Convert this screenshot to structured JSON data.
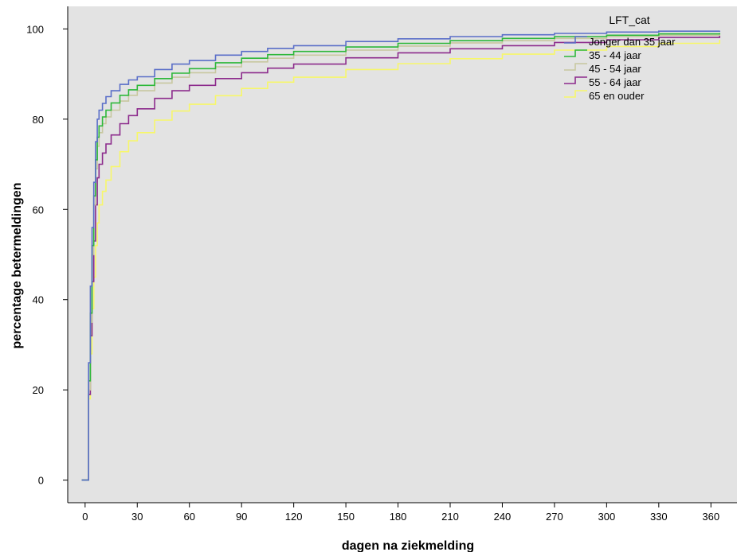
{
  "chart_data": {
    "type": "line",
    "step": true,
    "xlabel": "dagen na ziekmelding",
    "ylabel": "percentage betermeldingen",
    "xlim": [
      -10,
      375
    ],
    "ylim": [
      -5,
      105
    ],
    "xticks": [
      0,
      30,
      60,
      90,
      120,
      150,
      180,
      210,
      240,
      270,
      300,
      330,
      360
    ],
    "yticks": [
      0,
      20,
      40,
      60,
      80,
      100
    ],
    "background": "#e3e3e3",
    "legend": {
      "title": "LFT_cat",
      "position": "top-right"
    },
    "series": [
      {
        "name": "Jonger dan 35 jaar",
        "color": "#5a6ec8",
        "x": [
          0,
          2,
          3,
          4,
          5,
          6,
          7,
          8,
          10,
          12,
          15,
          20,
          25,
          30,
          40,
          50,
          60,
          75,
          90,
          105,
          120,
          150,
          180,
          210,
          240,
          270,
          300,
          330,
          365
        ],
        "y": [
          0,
          26,
          43,
          56,
          66,
          75,
          80,
          82,
          83.5,
          85,
          86.3,
          87.7,
          88.7,
          89.4,
          91,
          92.2,
          93,
          94.2,
          95,
          95.7,
          96.3,
          97.2,
          97.8,
          98.3,
          98.7,
          99,
          99.3,
          99.5,
          99.6
        ]
      },
      {
        "name": "35 - 44 jaar",
        "color": "#2db83a",
        "x": [
          0,
          2,
          3,
          4,
          5,
          6,
          7,
          8,
          10,
          12,
          15,
          20,
          25,
          30,
          40,
          50,
          60,
          75,
          90,
          105,
          120,
          150,
          180,
          210,
          240,
          270,
          300,
          330,
          365
        ],
        "y": [
          0,
          22,
          37,
          52,
          63,
          71,
          76,
          78.5,
          80.5,
          82,
          83.6,
          85.3,
          86.5,
          87.5,
          89,
          90.2,
          91.2,
          92.5,
          93.5,
          94.3,
          95,
          96,
          96.8,
          97.4,
          97.9,
          98.3,
          98.6,
          98.9,
          99.1
        ]
      },
      {
        "name": "45 - 54 jaar",
        "color": "#c8c8a0",
        "x": [
          0,
          2,
          3,
          4,
          5,
          6,
          7,
          8,
          10,
          12,
          15,
          20,
          25,
          30,
          40,
          50,
          60,
          75,
          90,
          105,
          120,
          150,
          180,
          210,
          240,
          270,
          300,
          330,
          365
        ],
        "y": [
          0,
          20,
          35,
          50,
          61,
          69,
          74,
          77,
          79,
          80.5,
          82,
          84,
          85.3,
          86.3,
          88,
          89.3,
          90.3,
          91.6,
          92.7,
          93.5,
          94.2,
          95.3,
          96.2,
          96.9,
          97.4,
          97.9,
          98.3,
          98.6,
          98.8
        ]
      },
      {
        "name": "55 - 64 jaar",
        "color": "#8c2b8c",
        "x": [
          0,
          2,
          3,
          4,
          5,
          6,
          7,
          8,
          10,
          12,
          15,
          20,
          25,
          30,
          40,
          50,
          60,
          75,
          90,
          105,
          120,
          150,
          180,
          210,
          240,
          270,
          300,
          330,
          365
        ],
        "y": [
          0,
          19,
          32,
          44,
          53,
          61,
          67,
          70,
          72.5,
          74.5,
          76.5,
          79,
          80.8,
          82.3,
          84.6,
          86.3,
          87.5,
          89,
          90.3,
          91.3,
          92.2,
          93.6,
          94.7,
          95.6,
          96.3,
          97,
          97.6,
          98.1,
          98.6
        ]
      },
      {
        "name": "65 en ouder",
        "color": "#f7f76a",
        "x": [
          0,
          2,
          3,
          4,
          5,
          6,
          7,
          8,
          10,
          12,
          15,
          20,
          25,
          30,
          40,
          50,
          60,
          75,
          90,
          105,
          120,
          150,
          180,
          210,
          240,
          270,
          300,
          330,
          365
        ],
        "y": [
          0,
          18,
          28,
          38,
          45,
          52,
          57,
          61,
          64,
          66.5,
          69.5,
          72.8,
          75.2,
          77,
          79.8,
          81.8,
          83.3,
          85.2,
          86.8,
          88.2,
          89.3,
          91,
          92.3,
          93.4,
          94.4,
          95.3,
          96.1,
          96.8,
          97.6
        ]
      }
    ]
  }
}
